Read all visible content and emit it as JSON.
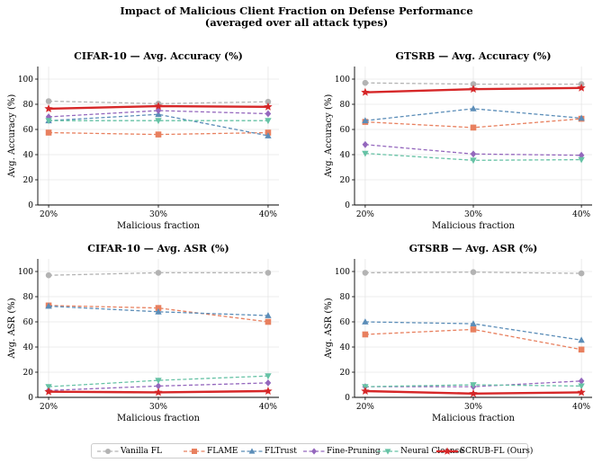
{
  "figure": {
    "title_line1": "Impact of Malicious Client Fraction on Defense Performance",
    "title_line2": "(averaged over all attack types)"
  },
  "series_styles": [
    {
      "name": "Vanilla FL",
      "color": "#b3b3b3",
      "marker": "circle",
      "dash": "dashed"
    },
    {
      "name": "FLAME",
      "color": "#e8805f",
      "marker": "square",
      "dash": "dashed"
    },
    {
      "name": "FLTrust",
      "color": "#5b8db8",
      "marker": "triangle-up",
      "dash": "dashed"
    },
    {
      "name": "Fine-Pruning",
      "color": "#9467bd",
      "marker": "diamond",
      "dash": "dashed"
    },
    {
      "name": "Neural Cleanse",
      "color": "#66c2a5",
      "marker": "triangle-down",
      "dash": "dashed"
    },
    {
      "name": "SCRUB-FL (Ours)",
      "color": "#d62728",
      "marker": "star",
      "dash": "solid"
    }
  ],
  "legend": {
    "items": [
      "Vanilla FL",
      "FLAME",
      "FLTrust",
      "Fine-Pruning",
      "Neural Cleanse",
      "SCRUB-FL (Ours)"
    ],
    "placement": "bottom-center"
  },
  "chart_data": [
    {
      "type": "line",
      "title": "CIFAR-10 — Avg. Accuracy (%)",
      "xlabel": "Malicious fraction",
      "ylabel": "Avg. Accuracy (%)",
      "categories": [
        "20%",
        "30%",
        "40%"
      ],
      "ylim": [
        0,
        110
      ],
      "yticks": [
        0,
        20,
        40,
        60,
        80,
        100
      ],
      "grid": true,
      "series": [
        {
          "name": "Vanilla FL",
          "values": [
            82.5,
            80.5,
            82
          ]
        },
        {
          "name": "FLAME",
          "values": [
            57.5,
            56,
            57.5
          ]
        },
        {
          "name": "FLTrust",
          "values": [
            67,
            72,
            55
          ]
        },
        {
          "name": "Fine-Pruning",
          "values": [
            70,
            75,
            72.5
          ]
        },
        {
          "name": "Neural Cleanse",
          "values": [
            67,
            67,
            67
          ]
        },
        {
          "name": "SCRUB-FL (Ours)",
          "values": [
            76.5,
            78.5,
            78
          ]
        }
      ]
    },
    {
      "type": "line",
      "title": "GTSRB — Avg. Accuracy (%)",
      "xlabel": "Malicious fraction",
      "ylabel": "Avg. Accuracy (%)",
      "categories": [
        "20%",
        "30%",
        "40%"
      ],
      "ylim": [
        0,
        110
      ],
      "yticks": [
        0,
        20,
        40,
        60,
        80,
        100
      ],
      "grid": true,
      "series": [
        {
          "name": "Vanilla FL",
          "values": [
            97,
            96,
            96
          ]
        },
        {
          "name": "FLAME",
          "values": [
            66,
            61.5,
            68.5
          ]
        },
        {
          "name": "FLTrust",
          "values": [
            67,
            76.5,
            69
          ]
        },
        {
          "name": "Fine-Pruning",
          "values": [
            48,
            40.5,
            39.5
          ]
        },
        {
          "name": "Neural Cleanse",
          "values": [
            41,
            35.5,
            36
          ]
        },
        {
          "name": "SCRUB-FL (Ours)",
          "values": [
            89.5,
            92,
            93
          ]
        }
      ]
    },
    {
      "type": "line",
      "title": "CIFAR-10 — Avg. ASR (%)",
      "xlabel": "Malicious fraction",
      "ylabel": "Avg. ASR (%)",
      "categories": [
        "20%",
        "30%",
        "40%"
      ],
      "ylim": [
        0,
        110
      ],
      "yticks": [
        0,
        20,
        40,
        60,
        80,
        100
      ],
      "grid": true,
      "series": [
        {
          "name": "Vanilla FL",
          "values": [
            97,
            99,
            99
          ]
        },
        {
          "name": "FLAME",
          "values": [
            73,
            71,
            60
          ]
        },
        {
          "name": "FLTrust",
          "values": [
            72.5,
            68,
            65
          ]
        },
        {
          "name": "Fine-Pruning",
          "values": [
            5.5,
            9,
            11.5
          ]
        },
        {
          "name": "Neural Cleanse",
          "values": [
            8.5,
            13.5,
            17
          ]
        },
        {
          "name": "SCRUB-FL (Ours)",
          "values": [
            4.5,
            4,
            5
          ]
        }
      ]
    },
    {
      "type": "line",
      "title": "GTSRB — Avg. ASR (%)",
      "xlabel": "Malicious fraction",
      "ylabel": "Avg. ASR (%)",
      "categories": [
        "20%",
        "30%",
        "40%"
      ],
      "ylim": [
        0,
        110
      ],
      "yticks": [
        0,
        20,
        40,
        60,
        80,
        100
      ],
      "grid": true,
      "series": [
        {
          "name": "Vanilla FL",
          "values": [
            99,
            99.5,
            98.5
          ]
        },
        {
          "name": "FLAME",
          "values": [
            50,
            54,
            38
          ]
        },
        {
          "name": "FLTrust",
          "values": [
            60,
            58.5,
            45.5
          ]
        },
        {
          "name": "Fine-Pruning",
          "values": [
            8.5,
            8.5,
            13
          ]
        },
        {
          "name": "Neural Cleanse",
          "values": [
            8.5,
            10,
            9
          ]
        },
        {
          "name": "SCRUB-FL (Ours)",
          "values": [
            5,
            3,
            4
          ]
        }
      ]
    }
  ]
}
